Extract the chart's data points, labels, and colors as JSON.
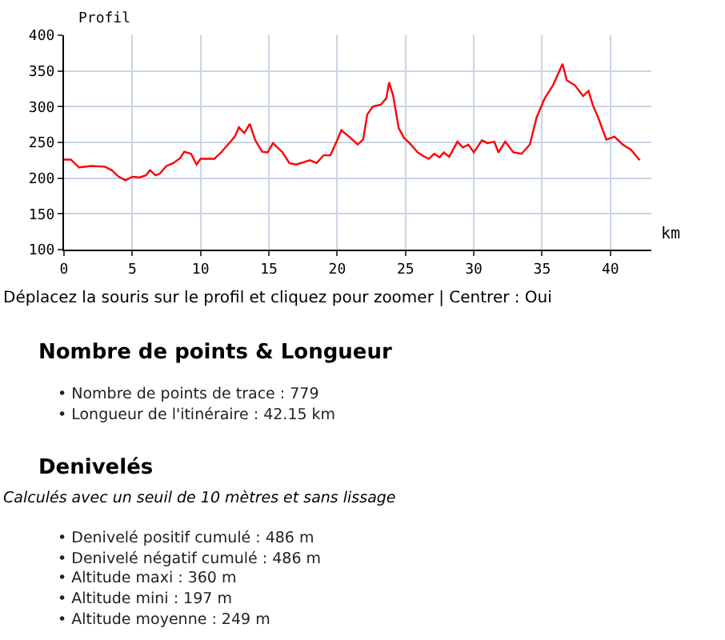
{
  "chart_data": {
    "type": "line",
    "xlabel": "km",
    "ylabel": "Profil",
    "x": [
      0,
      0.5,
      1.1,
      2,
      3,
      3.5,
      4,
      4.5,
      5,
      5.5,
      6,
      6.3,
      6.7,
      7,
      7.5,
      8,
      8.5,
      8.8,
      9.3,
      9.7,
      10,
      11,
      11.5,
      12,
      12.5,
      12.8,
      13.2,
      13.6,
      14,
      14.5,
      14.9,
      15.3,
      16,
      16.5,
      17,
      18,
      18.5,
      19,
      19.5,
      20,
      20.3,
      21,
      21.5,
      21.9,
      22.2,
      22.6,
      23.2,
      23.6,
      23.8,
      24.1,
      24.5,
      24.9,
      25.3,
      25.9,
      26.3,
      26.7,
      27.1,
      27.5,
      27.8,
      28.2,
      28.8,
      29.2,
      29.6,
      30,
      30.6,
      31,
      31.5,
      31.8,
      32.3,
      32.9,
      33.5,
      34.1,
      34.6,
      35.2,
      35.8,
      36.5,
      36.8,
      37.4,
      38,
      38.4,
      38.7,
      39.1,
      39.7,
      40.3,
      40.9,
      41.5,
      42.15
    ],
    "series": [
      {
        "color": "#ff0000",
        "values": [
          226,
          226,
          215,
          217,
          216,
          211,
          202,
          197,
          202,
          201,
          204,
          211,
          204,
          206,
          217,
          221,
          228,
          237,
          234,
          219,
          227,
          227,
          236,
          247,
          258,
          271,
          263,
          276,
          253,
          237,
          236,
          249,
          236,
          221,
          219,
          225,
          221,
          232,
          232,
          253,
          267,
          256,
          247,
          254,
          289,
          300,
          303,
          312,
          334,
          315,
          270,
          256,
          249,
          236,
          231,
          227,
          234,
          229,
          236,
          230,
          251,
          243,
          247,
          236,
          253,
          249,
          251,
          236,
          251,
          236,
          234,
          247,
          285,
          312,
          330,
          360,
          337,
          330,
          315,
          322,
          303,
          285,
          254,
          258,
          247,
          240,
          225
        ]
      }
    ],
    "xlim": [
      0,
      43
    ],
    "xticks": [
      0,
      5,
      10,
      15,
      20,
      25,
      30,
      35,
      40
    ],
    "ylim": [
      100,
      400
    ],
    "yticks": [
      100,
      150,
      200,
      250,
      300,
      350,
      400
    ],
    "grid": true,
    "marker": "none",
    "line_style": "solid",
    "annotations": [
      "Déplacez la souris sur le profil et cliquez pour zoomer | Centrer : Oui",
      "Nombre de points & Longueur",
      "• Nombre de points de trace : 779",
      "• Longueur de l'itinéraire : 42.15 km",
      "Denivelés",
      "Calculés avec un seuil de 10 mètres et sans lissage",
      "• Denivelé positif cumulé : 486 m",
      "• Denivelé négatif cumulé : 486 m",
      "• Altitude maxi : 360 m",
      "• Altitude mini : 197 m",
      "• Altitude moyenne : 249 m"
    ]
  }
}
